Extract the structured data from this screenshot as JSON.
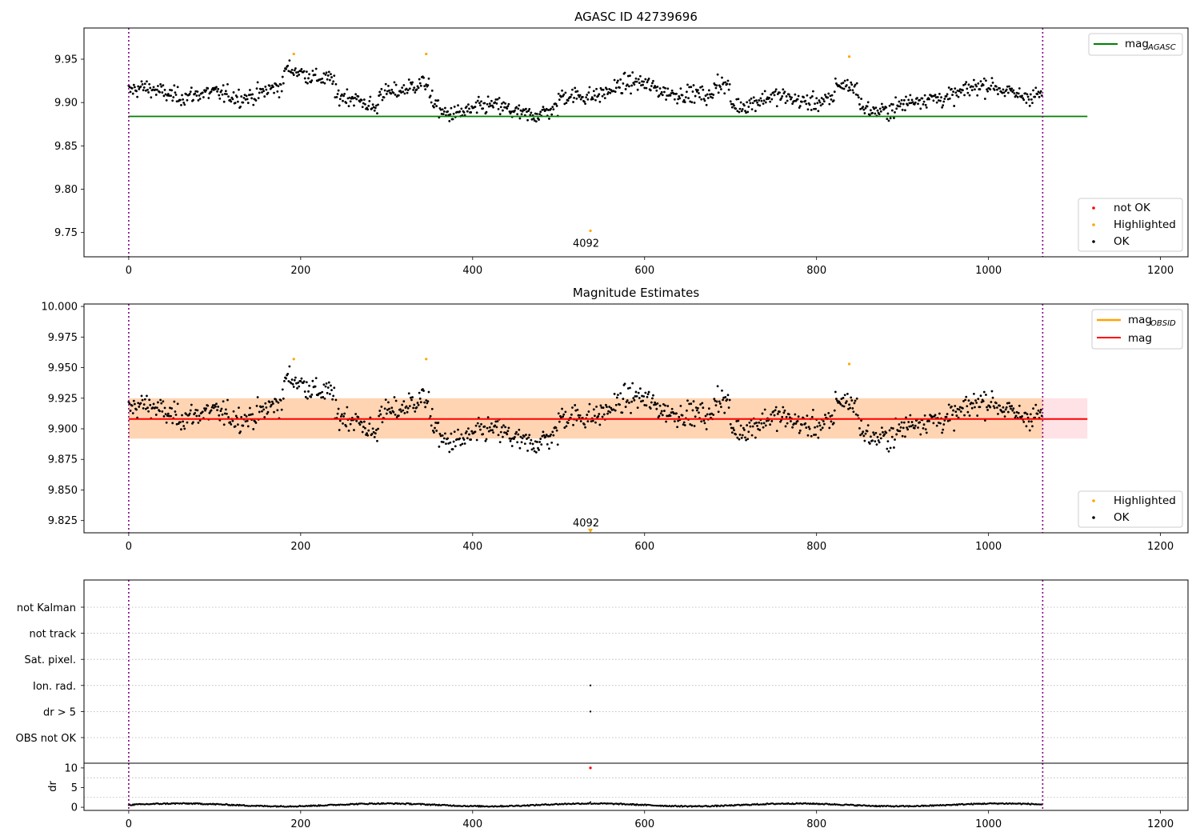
{
  "chart_data": [
    {
      "type": "scatter",
      "panel": "agasc",
      "title": "AGASC ID 42739696",
      "xlabel": "",
      "ylabel": "",
      "xlim": [
        -52,
        1232
      ],
      "ylim": [
        9.722,
        9.986
      ],
      "xticks": [
        0,
        200,
        400,
        600,
        800,
        1000,
        1200
      ],
      "yticks": [
        9.75,
        9.8,
        9.85,
        9.9,
        9.95
      ],
      "ytick_labels": [
        "9.75",
        "9.80",
        "9.85",
        "9.90",
        "9.95"
      ],
      "n_points": 1063,
      "baseline_level": 9.9055,
      "reference_line": {
        "name": "mag_AGASC",
        "value": 9.884,
        "color": "#008000",
        "x_range": [
          0,
          1115
        ]
      },
      "vertical_markers": [
        0,
        1063
      ],
      "highlighted": [
        {
          "x": 192,
          "y": 9.956
        },
        {
          "x": 346,
          "y": 9.956
        },
        {
          "x": 537,
          "y": 9.752
        },
        {
          "x": 838,
          "y": 9.953
        }
      ],
      "annotations": [
        {
          "text": "4092",
          "x": 530,
          "y": 9.738
        }
      ],
      "legends": [
        {
          "position": "upper-right",
          "entries": [
            {
              "label": "mag",
              "sub": "AGASC",
              "color": "#008000",
              "kind": "line"
            }
          ]
        },
        {
          "position": "lower-right",
          "entries": [
            {
              "label": "not OK",
              "color": "#ff0000",
              "kind": "marker"
            },
            {
              "label": "Highlighted",
              "color": "#ffa500",
              "kind": "marker"
            },
            {
              "label": "OK",
              "color": "#000000",
              "kind": "marker"
            }
          ]
        }
      ]
    },
    {
      "type": "scatter",
      "panel": "estimates",
      "title": "Magnitude Estimates",
      "xlabel": "",
      "ylabel": "",
      "xlim": [
        -52,
        1232
      ],
      "ylim": [
        9.815,
        10.002
      ],
      "xticks": [
        0,
        200,
        400,
        600,
        800,
        1000,
        1200
      ],
      "yticks": [
        9.825,
        9.85,
        9.875,
        9.9,
        9.925,
        9.95,
        9.975,
        10.0
      ],
      "ytick_labels": [
        "9.825",
        "9.850",
        "9.875",
        "9.900",
        "9.925",
        "9.950",
        "9.975",
        "10.000"
      ],
      "n_points": 1063,
      "mag_line": {
        "name": "mag",
        "value": 9.908,
        "color": "#ff0000",
        "x_range": [
          0,
          1115
        ]
      },
      "mag_obsid_band": {
        "name": "mag_OBSID",
        "low": 9.892,
        "high": 9.925,
        "color": "#ffa500",
        "x_range": [
          0,
          1063
        ]
      },
      "mag_band": {
        "low": 9.892,
        "high": 9.925,
        "color": "#ffb6c1",
        "x_range": [
          0,
          1115
        ]
      },
      "vertical_markers": [
        0,
        1063
      ],
      "highlighted": [
        {
          "x": 192,
          "y": 9.957
        },
        {
          "x": 346,
          "y": 9.957
        },
        {
          "x": 838,
          "y": 9.953
        }
      ],
      "offscale_marker": {
        "x": 537,
        "y": 9.817,
        "color": "#ffa500"
      },
      "annotations": [
        {
          "text": "4092",
          "x": 530,
          "y": 9.823
        }
      ],
      "legends": [
        {
          "position": "upper-right",
          "entries": [
            {
              "label": "mag",
              "sub": "OBSID",
              "color": "#ffa500",
              "kind": "line"
            },
            {
              "label": "mag",
              "sub": "",
              "color": "#ff0000",
              "kind": "line"
            }
          ]
        },
        {
          "position": "lower-right",
          "entries": [
            {
              "label": "Highlighted",
              "color": "#ffa500",
              "kind": "marker"
            },
            {
              "label": "OK",
              "color": "#000000",
              "kind": "marker"
            }
          ]
        }
      ]
    },
    {
      "type": "scatter",
      "panel": "flags",
      "title": "",
      "xlim": [
        -52,
        1232
      ],
      "categories": [
        "not Kalman",
        "not track",
        "Sat. pixel.",
        "Ion. rad.",
        "dr > 5",
        "OBS not OK"
      ],
      "flagged_points": [
        {
          "category": "Ion. rad.",
          "x": 537
        },
        {
          "category": "dr > 5",
          "x": 537
        }
      ],
      "vertical_markers": [
        0,
        1063
      ]
    },
    {
      "type": "line",
      "panel": "dr",
      "title": "",
      "xlabel": "",
      "ylabel": "dr",
      "xlim": [
        -52,
        1232
      ],
      "ylim": [
        -0.8,
        11.2
      ],
      "xticks": [
        0,
        200,
        400,
        600,
        800,
        1000,
        1200
      ],
      "yticks": [
        0,
        5,
        10
      ],
      "ytick_labels": [
        "0",
        "5",
        "10"
      ],
      "n_points": 1063,
      "typical_value": 0.6,
      "outliers": [
        {
          "x": 537,
          "y": 10,
          "color": "#ff0000"
        }
      ],
      "vertical_markers": [
        0,
        1063
      ]
    }
  ]
}
